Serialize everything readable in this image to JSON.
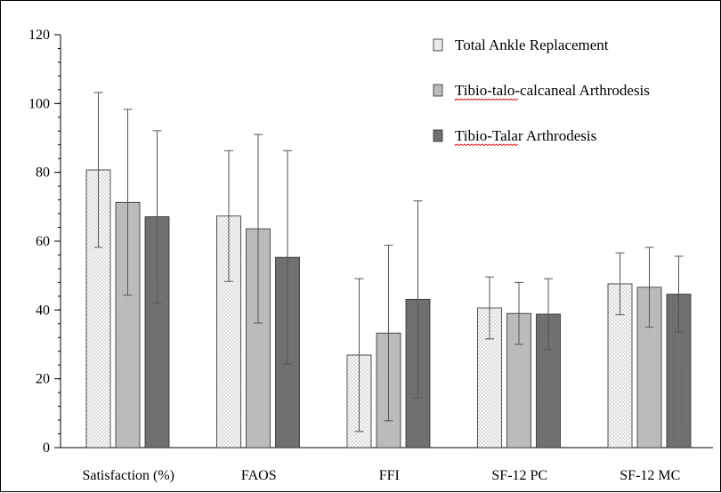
{
  "chart_data": {
    "type": "bar",
    "categories": [
      "Satisfaction (%)",
      "FAOS",
      "FFI",
      "SF-12 PC",
      "SF-12 MC"
    ],
    "ylim": [
      0,
      120
    ],
    "yticks": [
      0,
      20,
      40,
      60,
      80,
      100,
      120
    ],
    "y_minor_step": 4,
    "grid": false,
    "legend_position": "top-right",
    "series": [
      {
        "name": "Total Ankle Replacement",
        "style": "dotted",
        "color": "#f4f4f4",
        "values": [
          80.7,
          67.3,
          26.9,
          40.6,
          47.6
        ],
        "error": [
          22.5,
          19.0,
          22.2,
          9.0,
          9.0
        ]
      },
      {
        "name": "Tibio-talo-calcaneal Arthrodesis",
        "style": "light-gray",
        "color": "#b8b8b8",
        "values": [
          71.3,
          63.6,
          33.3,
          39.0,
          46.6
        ],
        "error": [
          27.0,
          27.4,
          25.5,
          9.0,
          11.6
        ]
      },
      {
        "name": "Tibio-Talar Arthrodesis",
        "style": "dark-gray",
        "color": "#6f6f6f",
        "values": [
          67.1,
          55.3,
          43.1,
          38.8,
          44.6
        ],
        "error": [
          25.0,
          31.0,
          28.6,
          10.3,
          11.0
        ]
      }
    ]
  }
}
